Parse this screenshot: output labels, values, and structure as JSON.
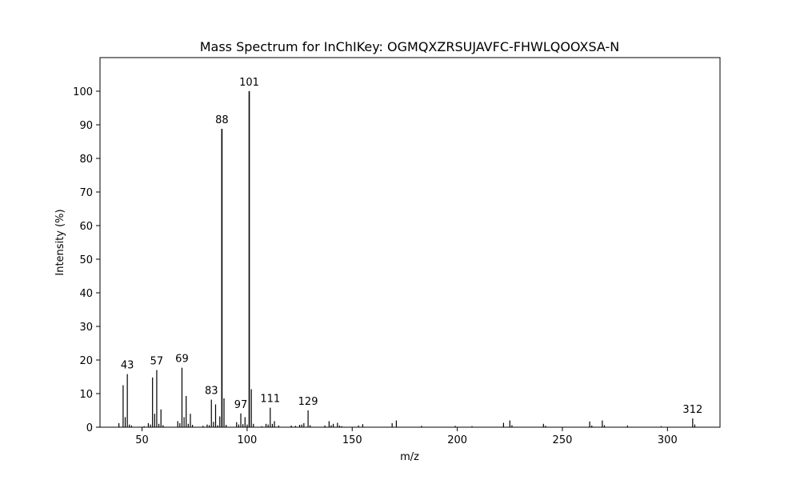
{
  "chart_data": {
    "type": "bar",
    "title": "Mass Spectrum for InChIKey: OGMQXZRSUJAVFC-FHWLQOOXSA-N",
    "xlabel": "m/z",
    "ylabel": "Intensity (%)",
    "xlim": [
      30,
      325
    ],
    "ylim": [
      0,
      110
    ],
    "xticks": [
      50,
      100,
      150,
      200,
      250,
      300
    ],
    "yticks": [
      0,
      10,
      20,
      30,
      40,
      50,
      60,
      70,
      80,
      90,
      100
    ],
    "grid": false,
    "bar_color": "#000000",
    "peaks": [
      {
        "mz": 39,
        "intensity": 1.2
      },
      {
        "mz": 41,
        "intensity": 12.5
      },
      {
        "mz": 42,
        "intensity": 3.0
      },
      {
        "mz": 43,
        "intensity": 15.8,
        "label": "43"
      },
      {
        "mz": 44,
        "intensity": 0.8
      },
      {
        "mz": 45,
        "intensity": 0.5
      },
      {
        "mz": 51,
        "intensity": 0.3
      },
      {
        "mz": 53,
        "intensity": 1.2
      },
      {
        "mz": 54,
        "intensity": 0.8
      },
      {
        "mz": 55,
        "intensity": 14.8
      },
      {
        "mz": 56,
        "intensity": 4.0
      },
      {
        "mz": 57,
        "intensity": 17.0,
        "label": "57"
      },
      {
        "mz": 58,
        "intensity": 1.0
      },
      {
        "mz": 59,
        "intensity": 5.3
      },
      {
        "mz": 60,
        "intensity": 0.6
      },
      {
        "mz": 67,
        "intensity": 1.8
      },
      {
        "mz": 68,
        "intensity": 1.2
      },
      {
        "mz": 69,
        "intensity": 17.7,
        "label": "69"
      },
      {
        "mz": 70,
        "intensity": 3.0
      },
      {
        "mz": 71,
        "intensity": 9.3
      },
      {
        "mz": 72,
        "intensity": 1.0
      },
      {
        "mz": 73,
        "intensity": 4.0
      },
      {
        "mz": 74,
        "intensity": 0.7
      },
      {
        "mz": 79,
        "intensity": 0.4
      },
      {
        "mz": 81,
        "intensity": 0.8
      },
      {
        "mz": 82,
        "intensity": 0.6
      },
      {
        "mz": 83,
        "intensity": 8.2,
        "label": "83"
      },
      {
        "mz": 84,
        "intensity": 1.6
      },
      {
        "mz": 85,
        "intensity": 6.8
      },
      {
        "mz": 86,
        "intensity": 0.6
      },
      {
        "mz": 87,
        "intensity": 3.2
      },
      {
        "mz": 88,
        "intensity": 88.8,
        "label": "88"
      },
      {
        "mz": 89,
        "intensity": 8.6
      },
      {
        "mz": 90,
        "intensity": 0.7
      },
      {
        "mz": 95,
        "intensity": 1.5
      },
      {
        "mz": 96,
        "intensity": 0.8
      },
      {
        "mz": 97,
        "intensity": 4.1,
        "label": "97"
      },
      {
        "mz": 98,
        "intensity": 0.9
      },
      {
        "mz": 99,
        "intensity": 3.0
      },
      {
        "mz": 100,
        "intensity": 0.8
      },
      {
        "mz": 101,
        "intensity": 100.0,
        "label": "101"
      },
      {
        "mz": 102,
        "intensity": 11.3
      },
      {
        "mz": 103,
        "intensity": 1.0
      },
      {
        "mz": 107,
        "intensity": 0.3
      },
      {
        "mz": 109,
        "intensity": 1.0
      },
      {
        "mz": 110,
        "intensity": 0.8
      },
      {
        "mz": 111,
        "intensity": 5.8,
        "label": "111"
      },
      {
        "mz": 112,
        "intensity": 1.0
      },
      {
        "mz": 113,
        "intensity": 1.8
      },
      {
        "mz": 115,
        "intensity": 0.5
      },
      {
        "mz": 121,
        "intensity": 0.5
      },
      {
        "mz": 123,
        "intensity": 0.4
      },
      {
        "mz": 125,
        "intensity": 0.7
      },
      {
        "mz": 126,
        "intensity": 0.8
      },
      {
        "mz": 127,
        "intensity": 1.2
      },
      {
        "mz": 129,
        "intensity": 5.0,
        "label": "129"
      },
      {
        "mz": 130,
        "intensity": 0.6
      },
      {
        "mz": 137,
        "intensity": 0.5
      },
      {
        "mz": 139,
        "intensity": 1.8
      },
      {
        "mz": 140,
        "intensity": 0.6
      },
      {
        "mz": 141,
        "intensity": 1.0
      },
      {
        "mz": 143,
        "intensity": 1.3
      },
      {
        "mz": 144,
        "intensity": 0.5
      },
      {
        "mz": 145,
        "intensity": 0.3
      },
      {
        "mz": 153,
        "intensity": 0.5
      },
      {
        "mz": 155,
        "intensity": 0.9
      },
      {
        "mz": 169,
        "intensity": 1.2
      },
      {
        "mz": 171,
        "intensity": 2.0
      },
      {
        "mz": 183,
        "intensity": 0.4
      },
      {
        "mz": 199,
        "intensity": 0.4
      },
      {
        "mz": 207,
        "intensity": 0.3
      },
      {
        "mz": 222,
        "intensity": 1.3
      },
      {
        "mz": 225,
        "intensity": 2.0
      },
      {
        "mz": 226,
        "intensity": 0.6
      },
      {
        "mz": 241,
        "intensity": 1.0
      },
      {
        "mz": 242,
        "intensity": 0.4
      },
      {
        "mz": 263,
        "intensity": 1.7
      },
      {
        "mz": 264,
        "intensity": 0.5
      },
      {
        "mz": 269,
        "intensity": 2.0
      },
      {
        "mz": 270,
        "intensity": 0.6
      },
      {
        "mz": 281,
        "intensity": 0.5
      },
      {
        "mz": 297,
        "intensity": 0.3
      },
      {
        "mz": 312,
        "intensity": 2.6,
        "label": "312"
      },
      {
        "mz": 313,
        "intensity": 0.8
      }
    ]
  }
}
